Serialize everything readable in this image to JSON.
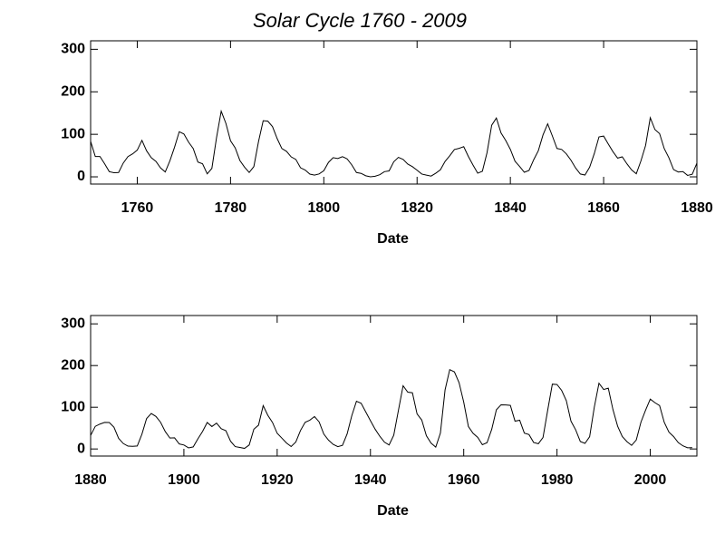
{
  "title": "Solar Cycle 1760 - 2009",
  "chart_data": [
    {
      "type": "line",
      "xlabel": "Date",
      "color": "#000000",
      "xlim": [
        1750,
        1880
      ],
      "xticks": [
        1760,
        1780,
        1800,
        1820,
        1840,
        1860,
        1880
      ],
      "ylim": [
        -17,
        320
      ],
      "yticks": [
        0,
        100,
        200,
        300
      ],
      "x": [
        1750,
        1751,
        1752,
        1753,
        1754,
        1755,
        1756,
        1757,
        1758,
        1759,
        1760,
        1761,
        1762,
        1763,
        1764,
        1765,
        1766,
        1767,
        1768,
        1769,
        1770,
        1771,
        1772,
        1773,
        1774,
        1775,
        1776,
        1777,
        1778,
        1779,
        1780,
        1781,
        1782,
        1783,
        1784,
        1785,
        1786,
        1787,
        1788,
        1789,
        1790,
        1791,
        1792,
        1793,
        1794,
        1795,
        1796,
        1797,
        1798,
        1799,
        1800,
        1801,
        1802,
        1803,
        1804,
        1805,
        1806,
        1807,
        1808,
        1809,
        1810,
        1811,
        1812,
        1813,
        1814,
        1815,
        1816,
        1817,
        1818,
        1819,
        1820,
        1821,
        1822,
        1823,
        1824,
        1825,
        1826,
        1827,
        1828,
        1829,
        1830,
        1831,
        1832,
        1833,
        1834,
        1835,
        1836,
        1837,
        1838,
        1839,
        1840,
        1841,
        1842,
        1843,
        1844,
        1845,
        1846,
        1847,
        1848,
        1849,
        1850,
        1851,
        1852,
        1853,
        1854,
        1855,
        1856,
        1857,
        1858,
        1859,
        1860,
        1861,
        1862,
        1863,
        1864,
        1865,
        1866,
        1867,
        1868,
        1869,
        1870,
        1871,
        1872,
        1873,
        1874,
        1875,
        1876,
        1877,
        1878,
        1879,
        1880
      ],
      "values": [
        83.4,
        47.7,
        47.8,
        30.7,
        12.2,
        9.6,
        10.2,
        32.4,
        47.6,
        54.0,
        62.9,
        85.9,
        61.2,
        45.1,
        36.4,
        20.9,
        11.4,
        37.8,
        69.8,
        106.1,
        100.8,
        81.6,
        66.5,
        34.8,
        30.6,
        7.0,
        19.8,
        92.5,
        154.4,
        125.9,
        84.8,
        68.1,
        38.5,
        22.8,
        10.2,
        24.1,
        82.9,
        132.0,
        130.9,
        118.1,
        89.9,
        66.6,
        60.0,
        46.9,
        41.0,
        21.3,
        16.0,
        6.4,
        4.1,
        6.8,
        14.5,
        34.0,
        45.0,
        43.1,
        47.5,
        42.2,
        28.1,
        10.1,
        8.1,
        2.5,
        0.0,
        1.4,
        5.0,
        12.2,
        13.9,
        35.4,
        45.8,
        41.1,
        30.1,
        23.9,
        15.6,
        6.6,
        4.0,
        1.8,
        8.5,
        16.6,
        36.3,
        49.6,
        64.2,
        67.0,
        70.9,
        47.8,
        27.5,
        8.5,
        13.2,
        56.9,
        121.5,
        138.3,
        103.2,
        85.7,
        64.6,
        36.7,
        24.2,
        10.7,
        15.0,
        40.1,
        61.5,
        98.5,
        124.7,
        96.3,
        66.6,
        64.5,
        54.1,
        39.0,
        20.6,
        6.7,
        4.3,
        22.7,
        54.8,
        93.8,
        95.8,
        77.2,
        59.1,
        44.0,
        47.0,
        30.5,
        16.3,
        7.3,
        37.6,
        74.0,
        139.0,
        111.2,
        101.6,
        66.2,
        44.7,
        17.0,
        11.3,
        12.4,
        3.4,
        6.0,
        32.3
      ]
    },
    {
      "type": "line",
      "xlabel": "Date",
      "color": "#000000",
      "xlim": [
        1880,
        2010
      ],
      "xticks": [
        1880,
        1900,
        1920,
        1940,
        1960,
        1980,
        2000
      ],
      "ylim": [
        -17,
        320
      ],
      "yticks": [
        0,
        100,
        200,
        300
      ],
      "x": [
        1880,
        1881,
        1882,
        1883,
        1884,
        1885,
        1886,
        1887,
        1888,
        1889,
        1890,
        1891,
        1892,
        1893,
        1894,
        1895,
        1896,
        1897,
        1898,
        1899,
        1900,
        1901,
        1902,
        1903,
        1904,
        1905,
        1906,
        1907,
        1908,
        1909,
        1910,
        1911,
        1912,
        1913,
        1914,
        1915,
        1916,
        1917,
        1918,
        1919,
        1920,
        1921,
        1922,
        1923,
        1924,
        1925,
        1926,
        1927,
        1928,
        1929,
        1930,
        1931,
        1932,
        1933,
        1934,
        1935,
        1936,
        1937,
        1938,
        1939,
        1940,
        1941,
        1942,
        1943,
        1944,
        1945,
        1946,
        1947,
        1948,
        1949,
        1950,
        1951,
        1952,
        1953,
        1954,
        1955,
        1956,
        1957,
        1958,
        1959,
        1960,
        1961,
        1962,
        1963,
        1964,
        1965,
        1966,
        1967,
        1968,
        1969,
        1970,
        1971,
        1972,
        1973,
        1974,
        1975,
        1976,
        1977,
        1978,
        1979,
        1980,
        1981,
        1982,
        1983,
        1984,
        1985,
        1986,
        1987,
        1988,
        1989,
        1990,
        1991,
        1992,
        1993,
        1994,
        1995,
        1996,
        1997,
        1998,
        1999,
        2000,
        2001,
        2002,
        2003,
        2004,
        2005,
        2006,
        2007,
        2008,
        2009
      ],
      "values": [
        32.3,
        54.3,
        59.7,
        63.7,
        63.5,
        52.2,
        25.4,
        13.1,
        6.8,
        6.3,
        7.1,
        35.6,
        73.0,
        85.1,
        78.0,
        64.0,
        41.8,
        26.2,
        26.7,
        12.1,
        9.5,
        2.7,
        5.0,
        24.4,
        42.0,
        63.5,
        53.8,
        62.0,
        48.5,
        43.9,
        18.6,
        5.7,
        3.6,
        1.4,
        9.6,
        47.4,
        57.1,
        103.9,
        80.6,
        63.6,
        37.6,
        26.1,
        14.2,
        5.8,
        16.7,
        44.3,
        63.9,
        69.0,
        77.8,
        64.9,
        35.7,
        21.2,
        11.1,
        5.7,
        8.7,
        36.1,
        79.7,
        114.4,
        109.6,
        88.8,
        67.8,
        47.5,
        30.6,
        16.3,
        9.6,
        33.2,
        92.6,
        151.6,
        136.3,
        134.7,
        83.9,
        69.4,
        31.5,
        13.9,
        4.4,
        38.0,
        141.7,
        190.2,
        184.8,
        159.0,
        112.3,
        53.9,
        37.5,
        27.9,
        10.2,
        15.1,
        47.0,
        93.8,
        105.9,
        105.5,
        104.5,
        66.6,
        68.9,
        38.0,
        34.5,
        15.5,
        12.6,
        27.5,
        92.5,
        155.4,
        154.6,
        140.4,
        115.9,
        66.6,
        45.9,
        17.9,
        13.4,
        29.4,
        100.2,
        157.6,
        142.6,
        145.7,
        94.3,
        54.6,
        29.9,
        17.5,
        8.6,
        21.5,
        64.3,
        93.3,
        119.6,
        111.0,
        104.0,
        63.7,
        40.4,
        29.8,
        15.2,
        7.5,
        2.9,
        3.1
      ]
    }
  ]
}
